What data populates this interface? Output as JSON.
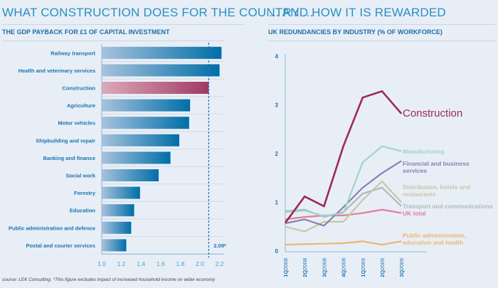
{
  "left": {
    "title": "WHAT CONSTRUCTION DOES FOR THE COUNTRY ...",
    "subtitle": "THE GDP PAYBACK FOR £1 OF CAPITAL INVESTMENT"
  },
  "right": {
    "title": "... AND HOW IT IS REWARDED",
    "subtitle": "UK REDUNDANCIES BY INDUSTRY (% OF WORKFORCE)"
  },
  "footnote": "source: LEK Consulting. *This figure excludes impact of increased household income on wider economy",
  "colors": {
    "bar_blue": "#006ea8",
    "bar_highlight": "#a03a62",
    "axis": "#4a9ccc"
  },
  "chart_data": [
    {
      "type": "bar",
      "orientation": "horizontal",
      "title": "THE GDP PAYBACK FOR £1 OF CAPITAL INVESTMENT",
      "categories": [
        "Railway transport",
        "Health and  veterinary services",
        "Construction",
        "Agriculture",
        "Motor vehicles",
        "Shipbuilding and repair",
        "Banking and finance",
        "Social work",
        "Forestry",
        "Education",
        "Public administration and defence",
        "Postal and courier services"
      ],
      "values": [
        2.22,
        2.2,
        2.09,
        1.9,
        1.89,
        1.79,
        1.7,
        1.58,
        1.39,
        1.33,
        1.3,
        1.25
      ],
      "highlight": "Construction",
      "xlim": [
        1.0,
        2.25
      ],
      "xticks": [
        "1.0",
        "1.2",
        "1.4",
        "1.6",
        "1.8",
        "2.0",
        "2.2"
      ],
      "reference_line": {
        "value": 2.09,
        "label": "2.09*"
      },
      "grid": true
    },
    {
      "type": "line",
      "title": "UK REDUNDANCIES BY INDUSTRY (% OF WORKFORCE)",
      "x": [
        "1Q2008",
        "2Q2008",
        "3Q2008",
        "4Q2008",
        "1Q2009",
        "2Q2009",
        "3Q2009"
      ],
      "ylim": [
        0,
        4
      ],
      "yticks": [
        "0",
        "1",
        "2",
        "3",
        "4"
      ],
      "series": [
        {
          "name": "Construction",
          "color": "#9c2a55",
          "values": [
            0.58,
            1.12,
            0.92,
            2.15,
            3.15,
            3.28,
            2.82
          ]
        },
        {
          "name": "Manufacturing",
          "color": "#9fd6c8",
          "values": [
            0.8,
            0.83,
            0.72,
            0.78,
            1.82,
            2.15,
            2.05
          ]
        },
        {
          "name": "Financial and business services",
          "color": "#8a7fb5",
          "values": [
            0.57,
            0.65,
            0.52,
            0.9,
            1.3,
            1.6,
            1.85
          ]
        },
        {
          "name": "Distribution, hotels and restaurants",
          "color": "#c4c8a4",
          "values": [
            0.5,
            0.4,
            0.6,
            0.6,
            1.05,
            1.43,
            1.0
          ]
        },
        {
          "name": "Transport and communications",
          "color": "#a9bcbc",
          "values": [
            0.82,
            0.85,
            0.7,
            0.8,
            1.18,
            1.3,
            0.92
          ]
        },
        {
          "name": "UK total",
          "color": "#e87a9e",
          "values": [
            0.65,
            0.7,
            0.73,
            0.73,
            0.78,
            0.85,
            0.78
          ]
        },
        {
          "name": "Public administration, education and health",
          "color": "#e8b870",
          "values": [
            0.13,
            0.14,
            0.15,
            0.16,
            0.2,
            0.13,
            0.2
          ]
        }
      ],
      "legend_placement": "right, at line ends"
    }
  ]
}
